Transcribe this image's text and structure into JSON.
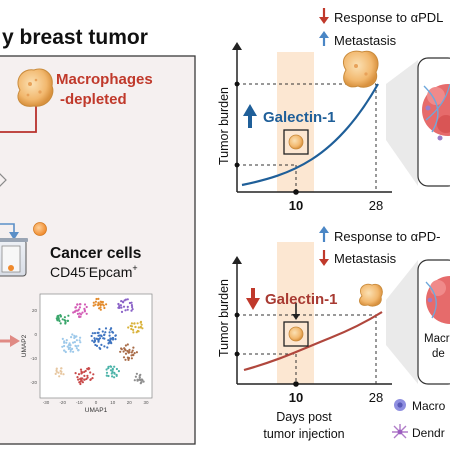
{
  "header": {
    "title": "y breast tumor"
  },
  "left_panel": {
    "macrophages_label_1": "Macrophages",
    "macrophages_label_2": "-depleted",
    "cancer_cells_title": "Cancer cells",
    "cancer_cells_marker_a": "CD45",
    "cancer_cells_marker_a_sup": "-",
    "cancer_cells_marker_b": "Epcam",
    "cancer_cells_marker_b_sup": "+",
    "umap_xlabel": "UMAP1",
    "umap_ylabel": "UMAP2",
    "umap_x_ticks": [
      "-30",
      "-20",
      "-10",
      "0",
      "10",
      "20",
      "30"
    ],
    "umap_y_ticks": [
      "20",
      "0",
      "-10",
      "-20"
    ]
  },
  "top_chart": {
    "legend_1": "Response to αPDL",
    "legend_2": "Metastasis",
    "legend_1_arrow": "down",
    "legend_2_arrow": "up",
    "gene_label": "Galectin-1",
    "gene_arrow": "up",
    "ylabel": "Tumor burden",
    "x_ticks": [
      "10",
      "28"
    ],
    "accent_color": "#1f5f99"
  },
  "bottom_chart": {
    "legend_1": "Response to αPD-",
    "legend_2": "Metastasis",
    "legend_1_arrow": "up",
    "legend_2_arrow": "down",
    "gene_label": "Galectin-1",
    "gene_arrow": "down",
    "ylabel": "Tumor burden",
    "x_ticks": [
      "10",
      "28"
    ],
    "xlabel_1": "Days post",
    "xlabel_2": "tumor injection",
    "accent_color": "#a83a32"
  },
  "right_panel": {
    "tumor_label_1": "Macr",
    "tumor_label_2": "de",
    "legend_item_1": "Macro",
    "legend_item_2": "Dendr"
  },
  "colors": {
    "red_text": "#c0392b",
    "blue_arrow": "#4a86c5",
    "red_arrow": "#c0392b",
    "highlight": "#fbe6cf"
  }
}
